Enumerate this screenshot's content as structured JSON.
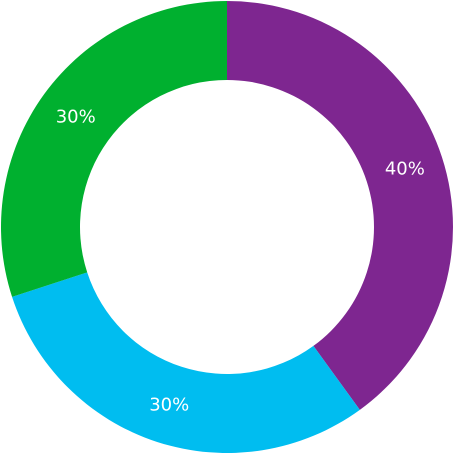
{
  "chart_data": {
    "type": "pie",
    "donut": true,
    "title": "",
    "legend": "none",
    "slices": [
      {
        "value": 40,
        "label": "40%",
        "color": "#7e2690"
      },
      {
        "value": 30,
        "label": "30%",
        "color": "#00bdf0"
      },
      {
        "value": 30,
        "label": "30%",
        "color": "#00b02f"
      }
    ]
  }
}
